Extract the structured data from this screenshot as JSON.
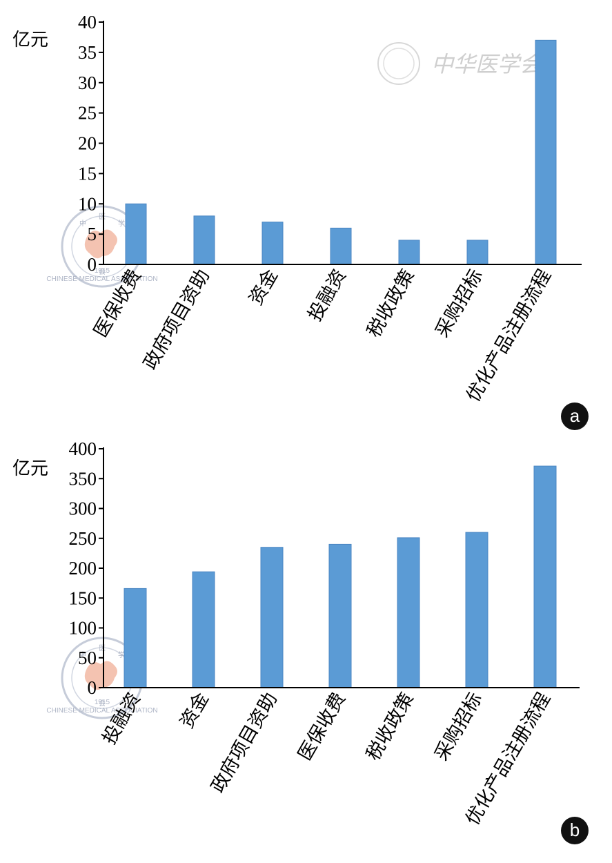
{
  "chart_data": [
    {
      "panel": "a",
      "type": "bar",
      "unit": "亿元",
      "categories": [
        "医保收费",
        "政府项目资助",
        "资金",
        "投融资",
        "税收政策",
        "采购招标",
        "优化产品注册流程"
      ],
      "values": [
        10,
        8,
        7,
        6,
        4,
        4,
        37
      ],
      "ylim": [
        0,
        40
      ],
      "yticks": [
        0,
        5,
        10,
        15,
        20,
        25,
        30,
        35,
        40
      ],
      "grid": false,
      "legend": "none",
      "bar_color": "#5b9bd5",
      "badge": "a"
    },
    {
      "panel": "b",
      "type": "bar",
      "unit": "亿元",
      "categories": [
        "投融资",
        "资金",
        "政府项目资助",
        "医保收费",
        "税收政策",
        "采购招标",
        "优化产品注册流程"
      ],
      "values": [
        166,
        194,
        235,
        240,
        251,
        260,
        371
      ],
      "ylim": [
        0,
        400
      ],
      "yticks": [
        0,
        50,
        100,
        150,
        200,
        250,
        300,
        350,
        400
      ],
      "grid": false,
      "legend": "none",
      "bar_color": "#5b9bd5",
      "badge": "b"
    }
  ],
  "watermark": {
    "text": "中华医学会",
    "seal_chars": [
      "中",
      "医",
      "学",
      "会"
    ],
    "seal_ring_text": "CHINESE MEDICAL ASSOCIATION",
    "seal_year": "1915"
  }
}
